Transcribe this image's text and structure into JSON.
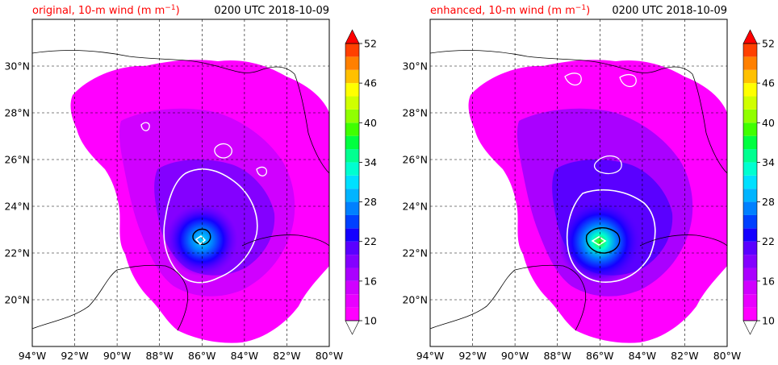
{
  "chart_data": [
    {
      "type": "heatmap",
      "title": "original, 10-m wind (m m",
      "title_superscript": "−1",
      "title_suffix": ")",
      "time_label": "0200 UTC 2018-10-09",
      "xlim": [
        -94,
        -80
      ],
      "ylim": [
        18,
        32
      ],
      "xticks": [
        "94°W",
        "92°W",
        "90°W",
        "88°W",
        "86°W",
        "84°W",
        "82°W",
        "80°W"
      ],
      "xtick_values": [
        -94,
        -92,
        -90,
        -88,
        -86,
        -84,
        -82,
        -80
      ],
      "yticks": [
        "20°N",
        "22°N",
        "24°N",
        "26°N",
        "28°N",
        "30°N"
      ],
      "ytick_values": [
        20,
        22,
        24,
        26,
        28,
        30
      ],
      "grid": true,
      "storm_center": [
        -85.9,
        22.6
      ],
      "core_intensity": 0.86,
      "colorbar": {
        "ticks": [
          "10",
          "16",
          "22",
          "28",
          "34",
          "40",
          "46",
          "52"
        ],
        "tick_values": [
          10,
          16,
          22,
          28,
          34,
          40,
          46,
          52
        ],
        "levels": [
          10,
          12,
          14,
          16,
          18,
          20,
          22,
          24,
          26,
          28,
          30,
          32,
          34,
          36,
          38,
          40,
          42,
          44,
          46,
          48,
          50,
          52
        ],
        "extend": "both"
      }
    },
    {
      "type": "heatmap",
      "title": "enhanced, 10-m wind (m m",
      "title_superscript": "−1",
      "title_suffix": ")",
      "time_label": "0200 UTC 2018-10-09",
      "xlim": [
        -94,
        -80
      ],
      "ylim": [
        18,
        32
      ],
      "xticks": [
        "94°W",
        "92°W",
        "90°W",
        "88°W",
        "86°W",
        "84°W",
        "82°W",
        "80°W"
      ],
      "xtick_values": [
        -94,
        -92,
        -90,
        -88,
        -86,
        -84,
        -82,
        -80
      ],
      "yticks": [
        "20°N",
        "22°N",
        "24°N",
        "26°N",
        "28°N",
        "30°N"
      ],
      "ytick_values": [
        20,
        22,
        24,
        26,
        28,
        30
      ],
      "grid": true,
      "storm_center": [
        -85.9,
        22.5
      ],
      "core_intensity": 1.0,
      "colorbar": {
        "ticks": [
          "10",
          "16",
          "22",
          "28",
          "34",
          "40",
          "46",
          "52"
        ],
        "tick_values": [
          10,
          16,
          22,
          28,
          34,
          40,
          46,
          52
        ],
        "levels": [
          10,
          12,
          14,
          16,
          18,
          20,
          22,
          24,
          26,
          28,
          30,
          32,
          34,
          36,
          38,
          40,
          42,
          44,
          46,
          48,
          50,
          52
        ],
        "extend": "both"
      }
    }
  ],
  "colormap": [
    "#ff00ff",
    "#e900ff",
    "#d000ff",
    "#aa00ff",
    "#8400ff",
    "#5a00ff",
    "#1400ff",
    "#0040ff",
    "#0080ff",
    "#00b4ff",
    "#00e0ff",
    "#00ffd0",
    "#00ff90",
    "#00ff40",
    "#40ff00",
    "#90ff00",
    "#d0ff00",
    "#ffff00",
    "#ffc000",
    "#ff8000",
    "#ff4000",
    "#ff0000"
  ],
  "colors": {
    "contour_white": "#ffffff",
    "contour_black": "#000000",
    "title_red": "#ff0000"
  }
}
